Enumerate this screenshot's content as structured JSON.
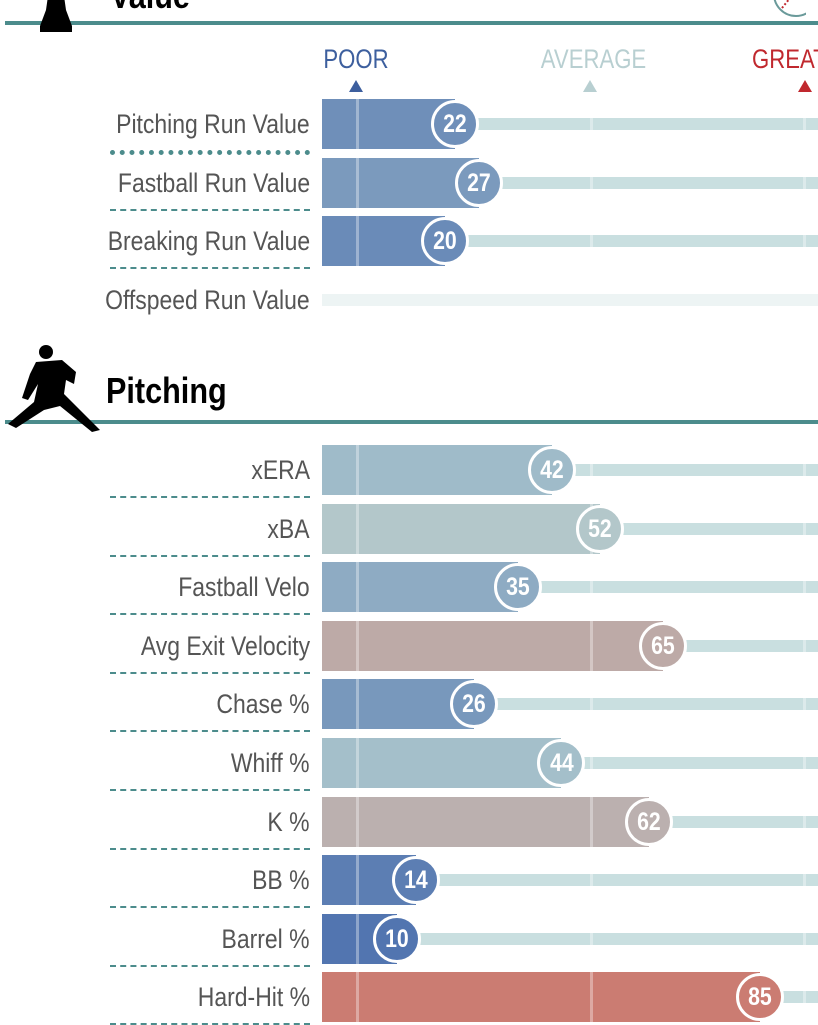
{
  "chart_data": {
    "type": "bar",
    "orientation": "horizontal",
    "xlim": [
      0,
      100
    ],
    "scale_labels": [
      {
        "label": "POOR",
        "value": 5,
        "color": "#3d5f9e"
      },
      {
        "label": "AVERAGE",
        "value": 50,
        "color": "#b8cfd1"
      },
      {
        "label": "GREAT",
        "value": 95,
        "color": "#c0282e"
      }
    ],
    "color_scale": {
      "low": "#3a5fa8",
      "mid": "#b2cccf",
      "high": "#d6594a"
    },
    "sections": [
      {
        "title": "Value",
        "icon": "batter-silhouette-icon",
        "rows": [
          {
            "label": "Pitching Run Value",
            "value": 22
          },
          {
            "label": "Fastball Run Value",
            "value": 27
          },
          {
            "label": "Breaking Run Value",
            "value": 20
          },
          {
            "label": "Offspeed Run Value",
            "value": null
          }
        ]
      },
      {
        "title": "Pitching",
        "icon": "pitcher-silhouette-icon",
        "rows": [
          {
            "label": "xERA",
            "value": 42
          },
          {
            "label": "xBA",
            "value": 52
          },
          {
            "label": "Fastball Velo",
            "value": 35
          },
          {
            "label": "Avg Exit Velocity",
            "value": 65
          },
          {
            "label": "Chase %",
            "value": 26
          },
          {
            "label": "Whiff %",
            "value": 44
          },
          {
            "label": "K %",
            "value": 62
          },
          {
            "label": "BB %",
            "value": 14
          },
          {
            "label": "Barrel %",
            "value": 10
          },
          {
            "label": "Hard-Hit %",
            "value": 85
          }
        ]
      }
    ]
  }
}
